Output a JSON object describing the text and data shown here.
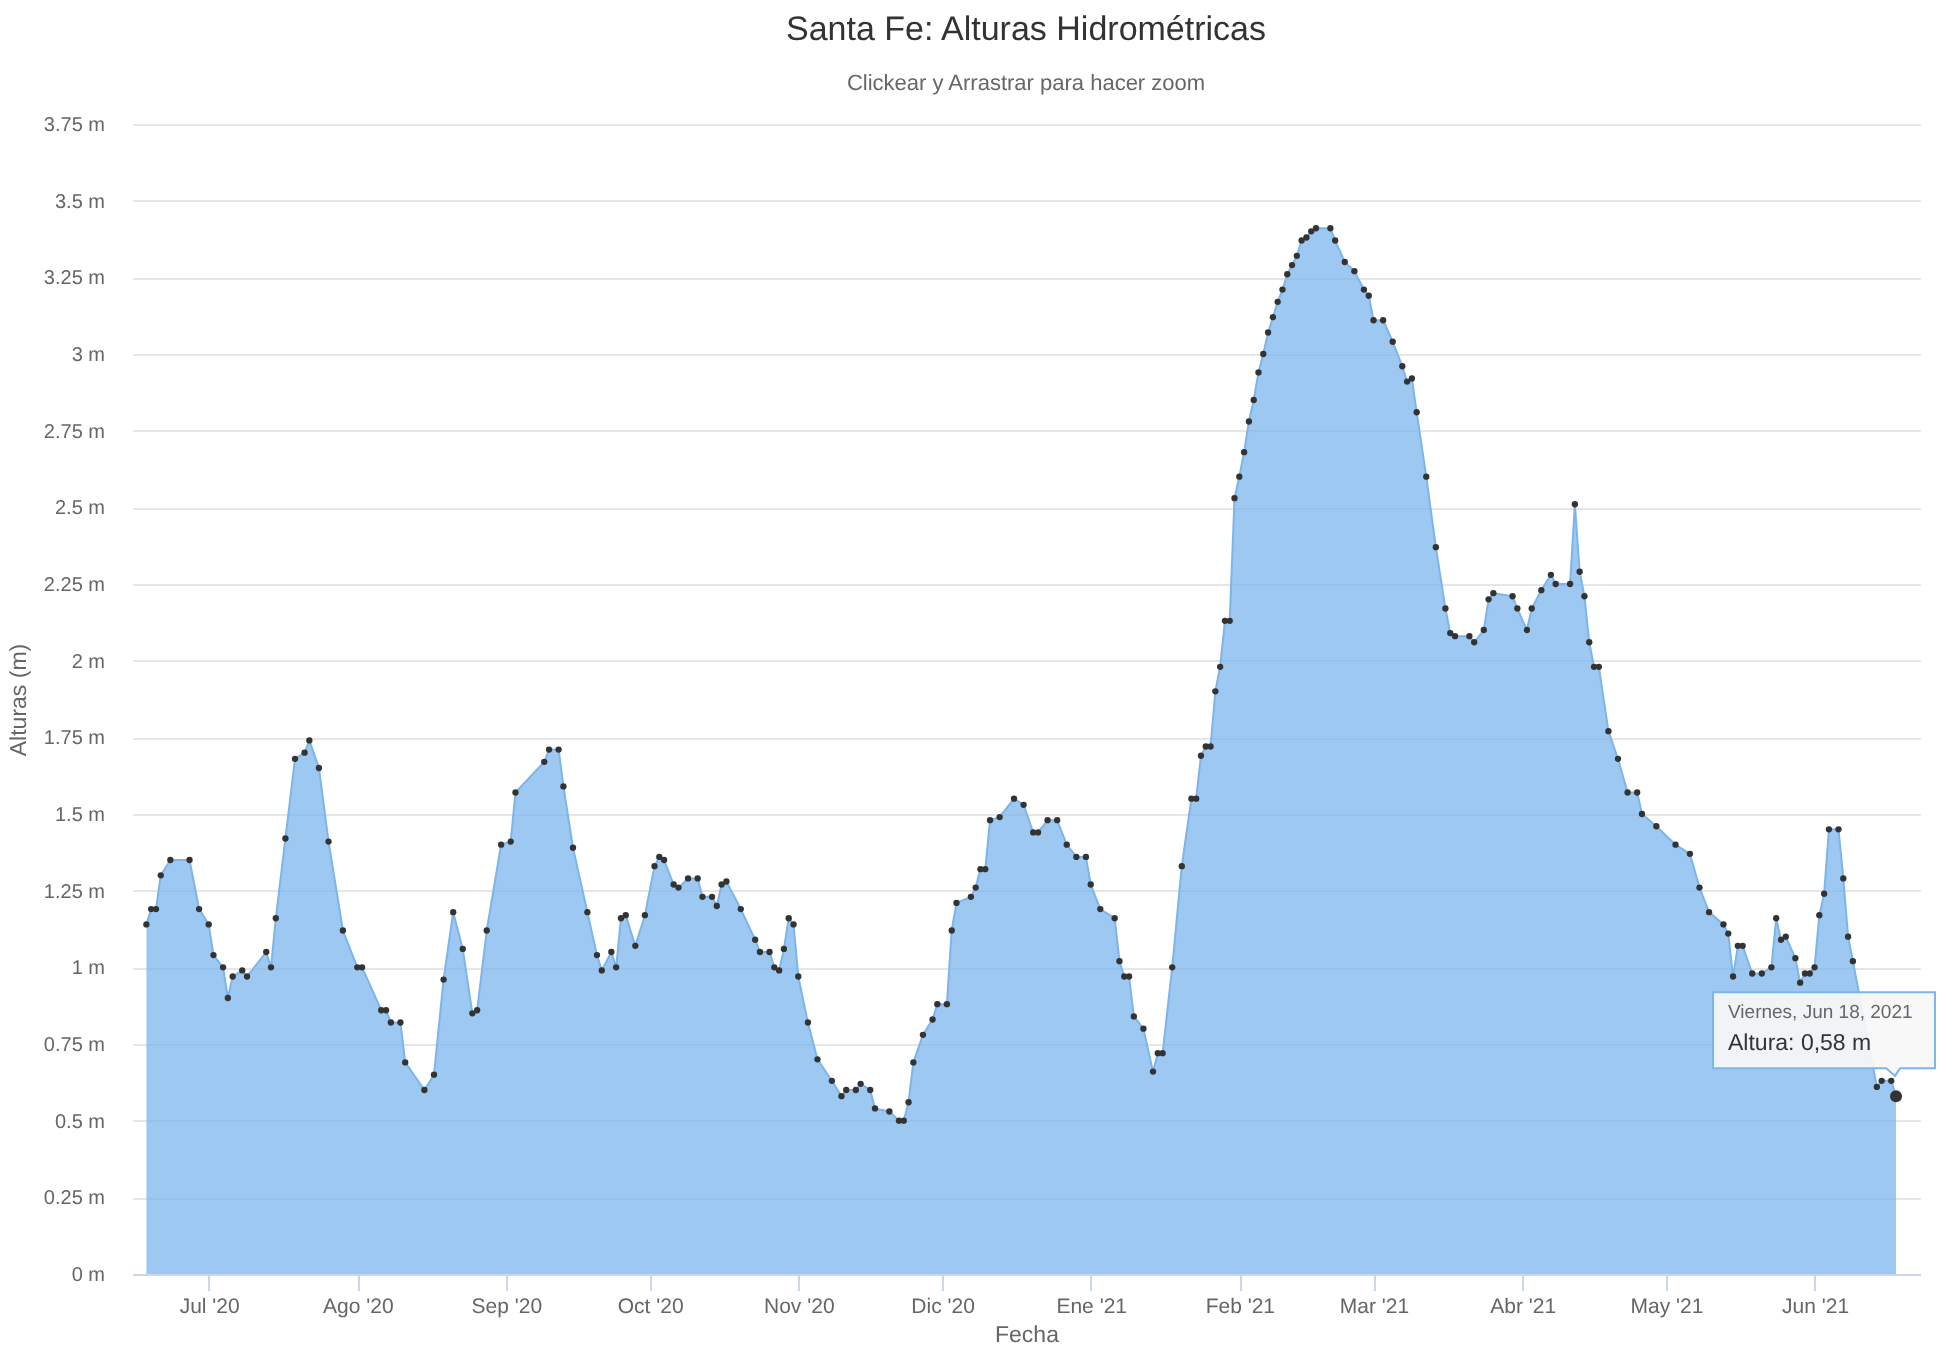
{
  "chart_data": {
    "type": "area",
    "title": "Santa Fe: Alturas Hidrométricas",
    "subtitle": "Clickear y Arrastrar para hacer zoom",
    "xlabel": "Fecha",
    "ylabel": "Alturas (m)",
    "x": [
      "2020-06-18",
      "2020-06-19",
      "2020-06-20",
      "2020-06-21",
      "2020-06-23",
      "2020-06-27",
      "2020-06-29",
      "2020-07-01",
      "2020-07-02",
      "2020-07-04",
      "2020-07-05",
      "2020-07-06",
      "2020-07-08",
      "2020-07-09",
      "2020-07-13",
      "2020-07-14",
      "2020-07-15",
      "2020-07-17",
      "2020-07-19",
      "2020-07-21",
      "2020-07-22",
      "2020-07-24",
      "2020-07-26",
      "2020-07-29",
      "2020-08-01",
      "2020-08-02",
      "2020-08-06",
      "2020-08-07",
      "2020-08-08",
      "2020-08-10",
      "2020-08-11",
      "2020-08-15",
      "2020-08-17",
      "2020-08-19",
      "2020-08-21",
      "2020-08-23",
      "2020-08-25",
      "2020-08-26",
      "2020-08-28",
      "2020-08-31",
      "2020-09-02",
      "2020-09-03",
      "2020-09-09",
      "2020-09-10",
      "2020-09-12",
      "2020-09-13",
      "2020-09-15",
      "2020-09-18",
      "2020-09-20",
      "2020-09-21",
      "2020-09-23",
      "2020-09-24",
      "2020-09-25",
      "2020-09-26",
      "2020-09-28",
      "2020-09-30",
      "2020-10-02",
      "2020-10-03",
      "2020-10-04",
      "2020-10-06",
      "2020-10-07",
      "2020-10-09",
      "2020-10-11",
      "2020-10-12",
      "2020-10-14",
      "2020-10-15",
      "2020-10-16",
      "2020-10-17",
      "2020-10-20",
      "2020-10-23",
      "2020-10-24",
      "2020-10-26",
      "2020-10-27",
      "2020-10-28",
      "2020-10-29",
      "2020-10-30",
      "2020-10-31",
      "2020-11-01",
      "2020-11-03",
      "2020-11-05",
      "2020-11-08",
      "2020-11-10",
      "2020-11-11",
      "2020-11-13",
      "2020-11-14",
      "2020-11-16",
      "2020-11-17",
      "2020-11-20",
      "2020-11-22",
      "2020-11-23",
      "2020-11-24",
      "2020-11-25",
      "2020-11-27",
      "2020-11-29",
      "2020-11-30",
      "2020-12-02",
      "2020-12-03",
      "2020-12-04",
      "2020-12-07",
      "2020-12-08",
      "2020-12-09",
      "2020-12-10",
      "2020-12-11",
      "2020-12-13",
      "2020-12-16",
      "2020-12-18",
      "2020-12-20",
      "2020-12-21",
      "2020-12-23",
      "2020-12-25",
      "2020-12-27",
      "2020-12-29",
      "2020-12-31",
      "2021-01-01",
      "2021-01-03",
      "2021-01-06",
      "2021-01-07",
      "2021-01-08",
      "2021-01-09",
      "2021-01-10",
      "2021-01-12",
      "2021-01-14",
      "2021-01-15",
      "2021-01-16",
      "2021-01-18",
      "2021-01-20",
      "2021-01-22",
      "2021-01-23",
      "2021-01-24",
      "2021-01-25",
      "2021-01-26",
      "2021-01-27",
      "2021-01-28",
      "2021-01-29",
      "2021-01-30",
      "2021-01-31",
      "2021-02-01",
      "2021-02-02",
      "2021-02-03",
      "2021-02-04",
      "2021-02-05",
      "2021-02-06",
      "2021-02-07",
      "2021-02-08",
      "2021-02-09",
      "2021-02-10",
      "2021-02-11",
      "2021-02-12",
      "2021-02-13",
      "2021-02-14",
      "2021-02-15",
      "2021-02-16",
      "2021-02-17",
      "2021-02-20",
      "2021-02-21",
      "2021-02-23",
      "2021-02-25",
      "2021-02-27",
      "2021-02-28",
      "2021-03-01",
      "2021-03-03",
      "2021-03-05",
      "2021-03-07",
      "2021-03-08",
      "2021-03-09",
      "2021-03-10",
      "2021-03-12",
      "2021-03-14",
      "2021-03-16",
      "2021-03-17",
      "2021-03-18",
      "2021-03-21",
      "2021-03-22",
      "2021-03-24",
      "2021-03-25",
      "2021-03-26",
      "2021-03-30",
      "2021-03-31",
      "2021-04-02",
      "2021-04-03",
      "2021-04-05",
      "2021-04-07",
      "2021-04-08",
      "2021-04-11",
      "2021-04-12",
      "2021-04-13",
      "2021-04-14",
      "2021-04-15",
      "2021-04-16",
      "2021-04-17",
      "2021-04-19",
      "2021-04-21",
      "2021-04-23",
      "2021-04-25",
      "2021-04-26",
      "2021-04-29",
      "2021-05-03",
      "2021-05-06",
      "2021-05-08",
      "2021-05-10",
      "2021-05-13",
      "2021-05-14",
      "2021-05-15",
      "2021-05-16",
      "2021-05-17",
      "2021-05-19",
      "2021-05-21",
      "2021-05-23",
      "2021-05-24",
      "2021-05-25",
      "2021-05-26",
      "2021-05-28",
      "2021-05-29",
      "2021-05-30",
      "2021-05-31",
      "2021-06-01",
      "2021-06-02",
      "2021-06-03",
      "2021-06-04",
      "2021-06-06",
      "2021-06-07",
      "2021-06-08",
      "2021-06-09",
      "2021-06-14",
      "2021-06-15",
      "2021-06-17",
      "2021-06-18"
    ],
    "values": [
      1.14,
      1.19,
      1.19,
      1.3,
      1.35,
      1.35,
      1.19,
      1.14,
      1.04,
      1.0,
      0.9,
      0.97,
      0.99,
      0.97,
      1.05,
      1.0,
      1.16,
      1.42,
      1.68,
      1.7,
      1.74,
      1.65,
      1.41,
      1.12,
      1.0,
      1.0,
      0.86,
      0.86,
      0.82,
      0.82,
      0.69,
      0.6,
      0.65,
      0.96,
      1.18,
      1.06,
      0.85,
      0.86,
      1.12,
      1.4,
      1.41,
      1.57,
      1.67,
      1.71,
      1.71,
      1.59,
      1.39,
      1.18,
      1.04,
      0.99,
      1.05,
      1.0,
      1.16,
      1.17,
      1.07,
      1.17,
      1.33,
      1.36,
      1.35,
      1.27,
      1.26,
      1.29,
      1.29,
      1.23,
      1.23,
      1.2,
      1.27,
      1.28,
      1.19,
      1.09,
      1.05,
      1.05,
      1.0,
      0.99,
      1.06,
      1.16,
      1.14,
      0.97,
      0.82,
      0.7,
      0.63,
      0.58,
      0.6,
      0.6,
      0.62,
      0.6,
      0.54,
      0.53,
      0.5,
      0.5,
      0.56,
      0.69,
      0.78,
      0.83,
      0.88,
      0.88,
      1.12,
      1.21,
      1.23,
      1.26,
      1.32,
      1.32,
      1.48,
      1.49,
      1.55,
      1.53,
      1.44,
      1.44,
      1.48,
      1.48,
      1.4,
      1.36,
      1.36,
      1.27,
      1.19,
      1.16,
      1.02,
      0.97,
      0.97,
      0.84,
      0.8,
      0.66,
      0.72,
      0.72,
      1.0,
      1.33,
      1.55,
      1.55,
      1.69,
      1.72,
      1.72,
      1.9,
      1.98,
      2.13,
      2.13,
      2.53,
      2.6,
      2.68,
      2.78,
      2.85,
      2.94,
      3.0,
      3.07,
      3.12,
      3.17,
      3.21,
      3.26,
      3.29,
      3.32,
      3.37,
      3.38,
      3.4,
      3.41,
      3.41,
      3.37,
      3.3,
      3.27,
      3.21,
      3.19,
      3.11,
      3.11,
      3.04,
      2.96,
      2.91,
      2.92,
      2.81,
      2.6,
      2.37,
      2.17,
      2.09,
      2.08,
      2.08,
      2.06,
      2.1,
      2.2,
      2.22,
      2.21,
      2.17,
      2.1,
      2.17,
      2.23,
      2.28,
      2.25,
      2.25,
      2.51,
      2.29,
      2.21,
      2.06,
      1.98,
      1.98,
      1.77,
      1.68,
      1.57,
      1.57,
      1.5,
      1.46,
      1.4,
      1.37,
      1.26,
      1.18,
      1.14,
      1.11,
      0.97,
      1.07,
      1.07,
      0.98,
      0.98,
      1.0,
      1.16,
      1.09,
      1.1,
      1.03,
      0.95,
      0.98,
      0.98,
      1.0,
      1.17,
      1.24,
      1.45,
      1.45,
      1.29,
      1.1,
      1.02,
      0.61,
      0.63,
      0.63,
      0.58
    ],
    "color": "#7cb5ec",
    "marker": "circle",
    "grid": "y",
    "xlim": [
      "2020-06-15",
      "2021-06-23"
    ],
    "xticks": [
      {
        "value": "2020-07-01",
        "label": "Jul '20"
      },
      {
        "value": "2020-08-01",
        "label": "Ago '20"
      },
      {
        "value": "2020-09-01",
        "label": "Sep '20"
      },
      {
        "value": "2020-10-01",
        "label": "Oct '20"
      },
      {
        "value": "2020-11-01",
        "label": "Nov '20"
      },
      {
        "value": "2020-12-01",
        "label": "Dic '20"
      },
      {
        "value": "2021-01-01",
        "label": "Ene '21"
      },
      {
        "value": "2021-02-01",
        "label": "Feb '21"
      },
      {
        "value": "2021-03-01",
        "label": "Mar '21"
      },
      {
        "value": "2021-04-01",
        "label": "Abr '21"
      },
      {
        "value": "2021-05-01",
        "label": "May '21"
      },
      {
        "value": "2021-06-01",
        "label": "Jun '21"
      }
    ],
    "ylim": [
      0,
      3.75
    ],
    "yticks": [
      {
        "value": 0,
        "label": "0 m"
      },
      {
        "value": 0.25,
        "label": "0.25 m"
      },
      {
        "value": 0.5,
        "label": "0.5 m"
      },
      {
        "value": 0.75,
        "label": "0.75 m"
      },
      {
        "value": 1,
        "label": "1 m"
      },
      {
        "value": 1.25,
        "label": "1.25 m"
      },
      {
        "value": 1.5,
        "label": "1.5 m"
      },
      {
        "value": 1.75,
        "label": "1.75 m"
      },
      {
        "value": 2,
        "label": "2 m"
      },
      {
        "value": 2.25,
        "label": "2.25 m"
      },
      {
        "value": 2.5,
        "label": "2.5 m"
      },
      {
        "value": 2.75,
        "label": "2.75 m"
      },
      {
        "value": 3,
        "label": "3 m"
      },
      {
        "value": 3.25,
        "label": "3.25 m"
      },
      {
        "value": 3.5,
        "label": "3.5 m"
      },
      {
        "value": 3.75,
        "label": "3.75 m"
      }
    ],
    "annotations": [
      "Viernes, Jun 18, 2021",
      "Altura: 0,58 m"
    ]
  }
}
